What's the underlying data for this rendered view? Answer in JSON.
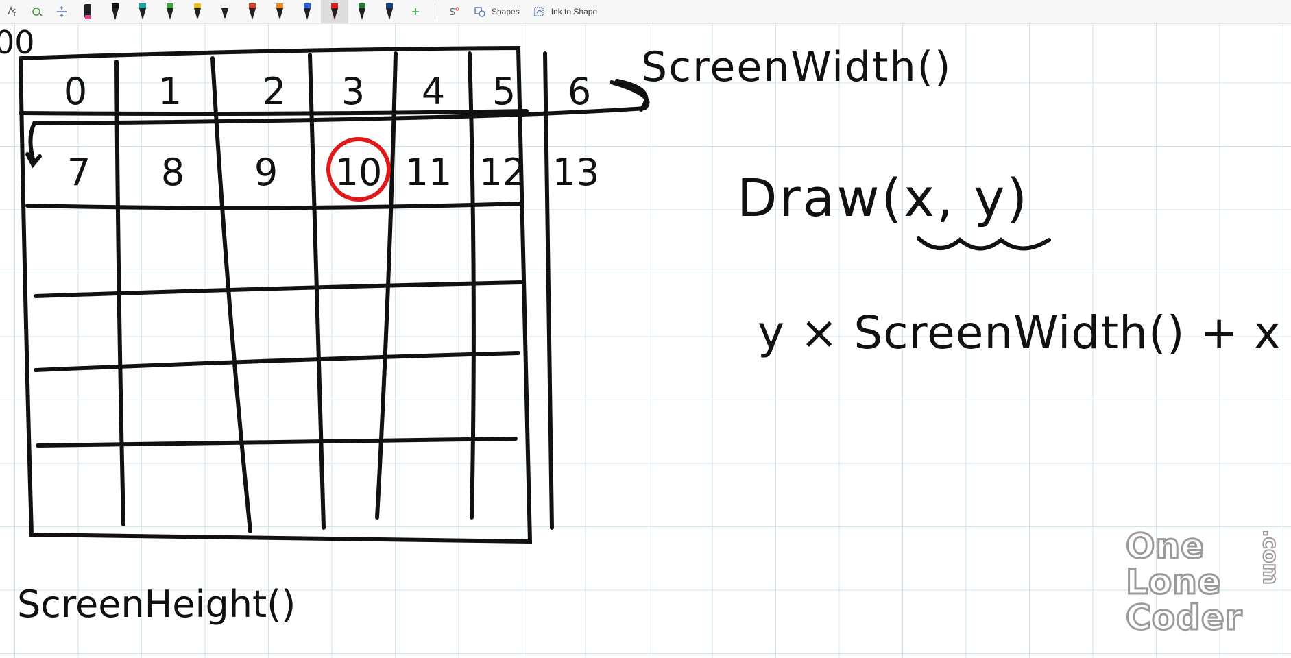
{
  "toolbar": {
    "tools": [
      {
        "name": "lasso-select-icon"
      },
      {
        "name": "add-space-icon"
      },
      {
        "name": "insert-space-icon"
      }
    ],
    "pens": [
      {
        "name": "highlighter-pink",
        "color": "#e0408a"
      },
      {
        "name": "pen-black-1",
        "color": "#111111"
      },
      {
        "name": "pen-teal",
        "color": "#1aa5a5"
      },
      {
        "name": "pen-green",
        "color": "#3fa33f"
      },
      {
        "name": "pen-yellow",
        "color": "#e4c020"
      },
      {
        "name": "pen-white",
        "color": "#f4f4f4"
      },
      {
        "name": "pen-red-1",
        "color": "#d83a2a"
      },
      {
        "name": "pen-orange",
        "color": "#e58a1a"
      },
      {
        "name": "pen-blue",
        "color": "#2a5fd8"
      },
      {
        "name": "pen-red-active",
        "color": "#e01a1a"
      },
      {
        "name": "pen-dark-green",
        "color": "#2a7a3a"
      },
      {
        "name": "pen-navy",
        "color": "#1a3f8a"
      }
    ],
    "shapes_label": "Shapes",
    "ink_to_shape_label": "Ink to Shape"
  },
  "canvas": {
    "grid_numbers_row1": [
      "0",
      "1",
      "2",
      "3",
      "4",
      "5",
      "6"
    ],
    "grid_numbers_row2": [
      "7",
      "8",
      "9",
      "10",
      "11",
      "12",
      "13"
    ],
    "highlighted_cell": "10",
    "top_left_label": "00",
    "screen_width_label": "ScreenWidth()",
    "screen_height_label": "ScreenHeight()",
    "draw_call": "Draw(x, y)",
    "formula": "y × ScreenWidth() + x",
    "ink_color": "#111111",
    "highlight_color": "#e01a1a"
  },
  "logo": {
    "line1": "One",
    "line2": "Lone",
    "line3": "Coder",
    "suffix": ".com"
  }
}
